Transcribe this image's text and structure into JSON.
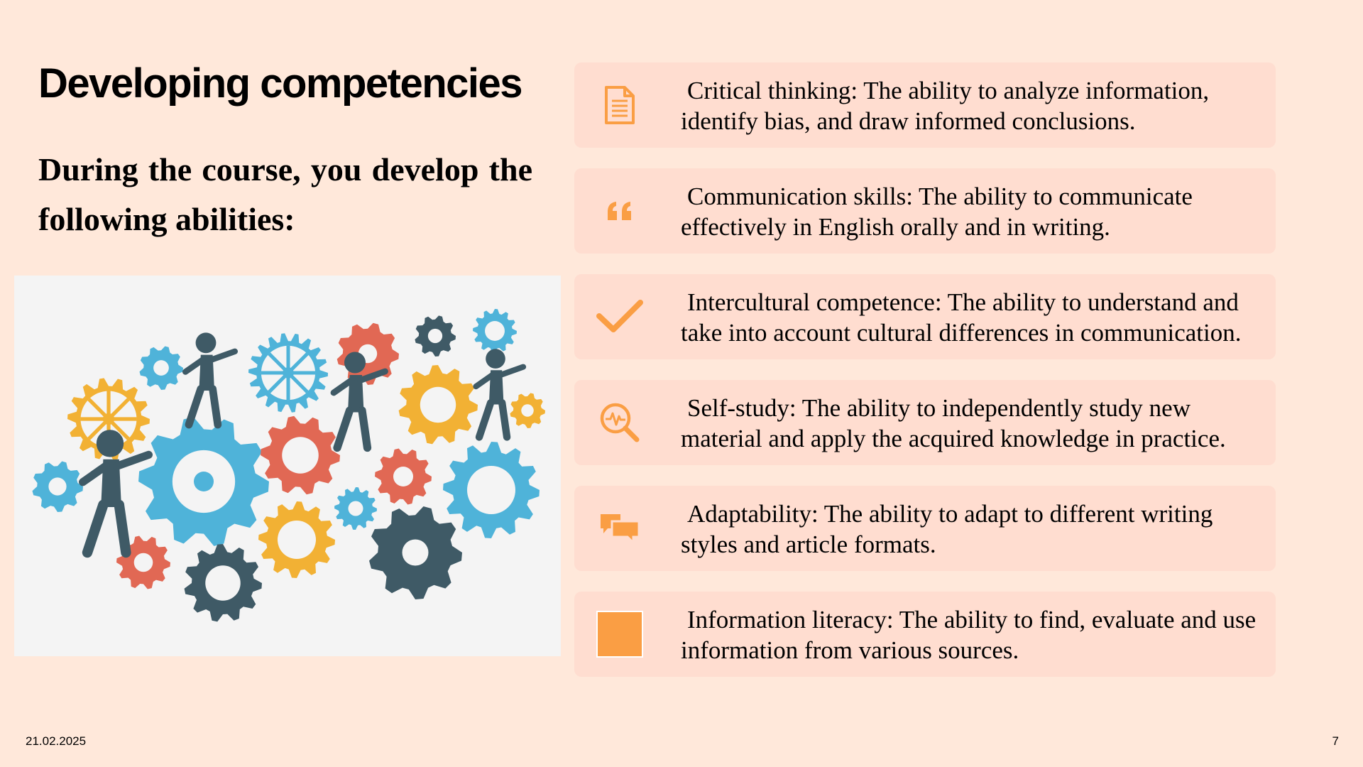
{
  "slide": {
    "title": "Developing competencies",
    "subtitle": "During the course, you develop the following abilities:",
    "date": "21.02.2025",
    "page_number": "7"
  },
  "colors": {
    "background": "#FFE8DA",
    "card": "#FFDDD0",
    "accent": "#FA9E44",
    "gear_blue": "#4FB3D9",
    "gear_red": "#E16854",
    "gear_yellow": "#F2B134",
    "gear_dark": "#3F5A66"
  },
  "illustration": {
    "icon": "gears-and-people-illustration"
  },
  "competencies": [
    {
      "icon": "document-icon",
      "text": "Critical thinking: The ability to analyze information, identify bias, and draw informed conclusions."
    },
    {
      "icon": "quote-icon",
      "text": "Communication skills: The ability to communicate effectively in English orally and in writing."
    },
    {
      "icon": "checkmark-icon",
      "text": "Intercultural competence: The ability to understand and take into account cultural differences in communication."
    },
    {
      "icon": "magnifier-pulse-icon",
      "text": "Self-study: The ability to independently study new material and apply the acquired knowledge in practice."
    },
    {
      "icon": "chat-bubbles-icon",
      "text": "Adaptability: The ability to adapt to different writing styles and article formats."
    },
    {
      "icon": "square-icon",
      "text": "Information literacy: The ability to find, evaluate and use information from various sources."
    }
  ]
}
